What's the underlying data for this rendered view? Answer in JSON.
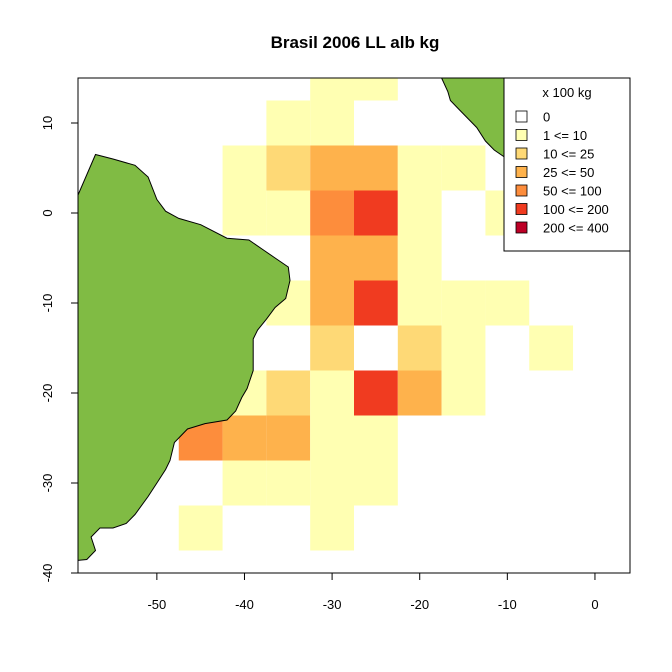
{
  "chart_data": {
    "type": "heatmap",
    "title": "Brasil 2006 LL alb kg",
    "xlabel": "",
    "ylabel": "",
    "xlim": [
      -59,
      4
    ],
    "ylim": [
      -40,
      15
    ],
    "cell_size": 5,
    "x_ticks": [
      -50,
      -40,
      -30,
      -20,
      -10,
      0
    ],
    "y_ticks": [
      10,
      0,
      -10,
      -20,
      -30,
      -40
    ],
    "legend": {
      "title": "x 100 kg",
      "position": "top-right",
      "entries": [
        {
          "label": "0",
          "color": "#ffffff"
        },
        {
          "label": "1 <= 10",
          "color": "#ffffb2"
        },
        {
          "label": "10 <= 25",
          "color": "#fed976"
        },
        {
          "label": "25 <= 50",
          "color": "#feb24c"
        },
        {
          "label": "50 <= 100",
          "color": "#fd8d3c"
        },
        {
          "label": "100 <= 200",
          "color": "#f03b20"
        },
        {
          "label": "200 <= 400",
          "color": "#bd0026"
        }
      ]
    },
    "land_color": "#80bb44",
    "cells": [
      {
        "x": -30,
        "y": 15,
        "class": 1
      },
      {
        "x": -25,
        "y": 15,
        "class": 1
      },
      {
        "x": -35,
        "y": 10,
        "class": 1
      },
      {
        "x": -30,
        "y": 10,
        "class": 1
      },
      {
        "x": -40,
        "y": 5,
        "class": 1
      },
      {
        "x": -35,
        "y": 5,
        "class": 2
      },
      {
        "x": -30,
        "y": 5,
        "class": 3
      },
      {
        "x": -25,
        "y": 5,
        "class": 3
      },
      {
        "x": -20,
        "y": 5,
        "class": 1
      },
      {
        "x": -15,
        "y": 5,
        "class": 1
      },
      {
        "x": -40,
        "y": 0,
        "class": 1
      },
      {
        "x": -35,
        "y": 0,
        "class": 1
      },
      {
        "x": -30,
        "y": 0,
        "class": 4
      },
      {
        "x": -25,
        "y": 0,
        "class": 5
      },
      {
        "x": -20,
        "y": 0,
        "class": 1
      },
      {
        "x": -10,
        "y": 0,
        "class": 1
      },
      {
        "x": -30,
        "y": -5,
        "class": 3
      },
      {
        "x": -25,
        "y": -5,
        "class": 3
      },
      {
        "x": -20,
        "y": -5,
        "class": 1
      },
      {
        "x": -35,
        "y": -10,
        "class": 1
      },
      {
        "x": -30,
        "y": -10,
        "class": 3
      },
      {
        "x": -25,
        "y": -10,
        "class": 5
      },
      {
        "x": -20,
        "y": -10,
        "class": 1
      },
      {
        "x": -15,
        "y": -10,
        "class": 1
      },
      {
        "x": -10,
        "y": -10,
        "class": 1
      },
      {
        "x": -30,
        "y": -15,
        "class": 2
      },
      {
        "x": -20,
        "y": -15,
        "class": 2
      },
      {
        "x": -15,
        "y": -15,
        "class": 1
      },
      {
        "x": -5,
        "y": -15,
        "class": 1
      },
      {
        "x": -40,
        "y": -20,
        "class": 1
      },
      {
        "x": -35,
        "y": -20,
        "class": 2
      },
      {
        "x": -30,
        "y": -20,
        "class": 1
      },
      {
        "x": -25,
        "y": -20,
        "class": 5
      },
      {
        "x": -20,
        "y": -20,
        "class": 3
      },
      {
        "x": -15,
        "y": -20,
        "class": 1
      },
      {
        "x": -45,
        "y": -25,
        "class": 4
      },
      {
        "x": -40,
        "y": -25,
        "class": 3
      },
      {
        "x": -35,
        "y": -25,
        "class": 3
      },
      {
        "x": -30,
        "y": -25,
        "class": 1
      },
      {
        "x": -25,
        "y": -25,
        "class": 1
      },
      {
        "x": -40,
        "y": -30,
        "class": 1
      },
      {
        "x": -35,
        "y": -30,
        "class": 1
      },
      {
        "x": -30,
        "y": -30,
        "class": 1
      },
      {
        "x": -25,
        "y": -30,
        "class": 1
      },
      {
        "x": -45,
        "y": -35,
        "class": 1
      },
      {
        "x": -30,
        "y": -35,
        "class": 1
      }
    ]
  }
}
